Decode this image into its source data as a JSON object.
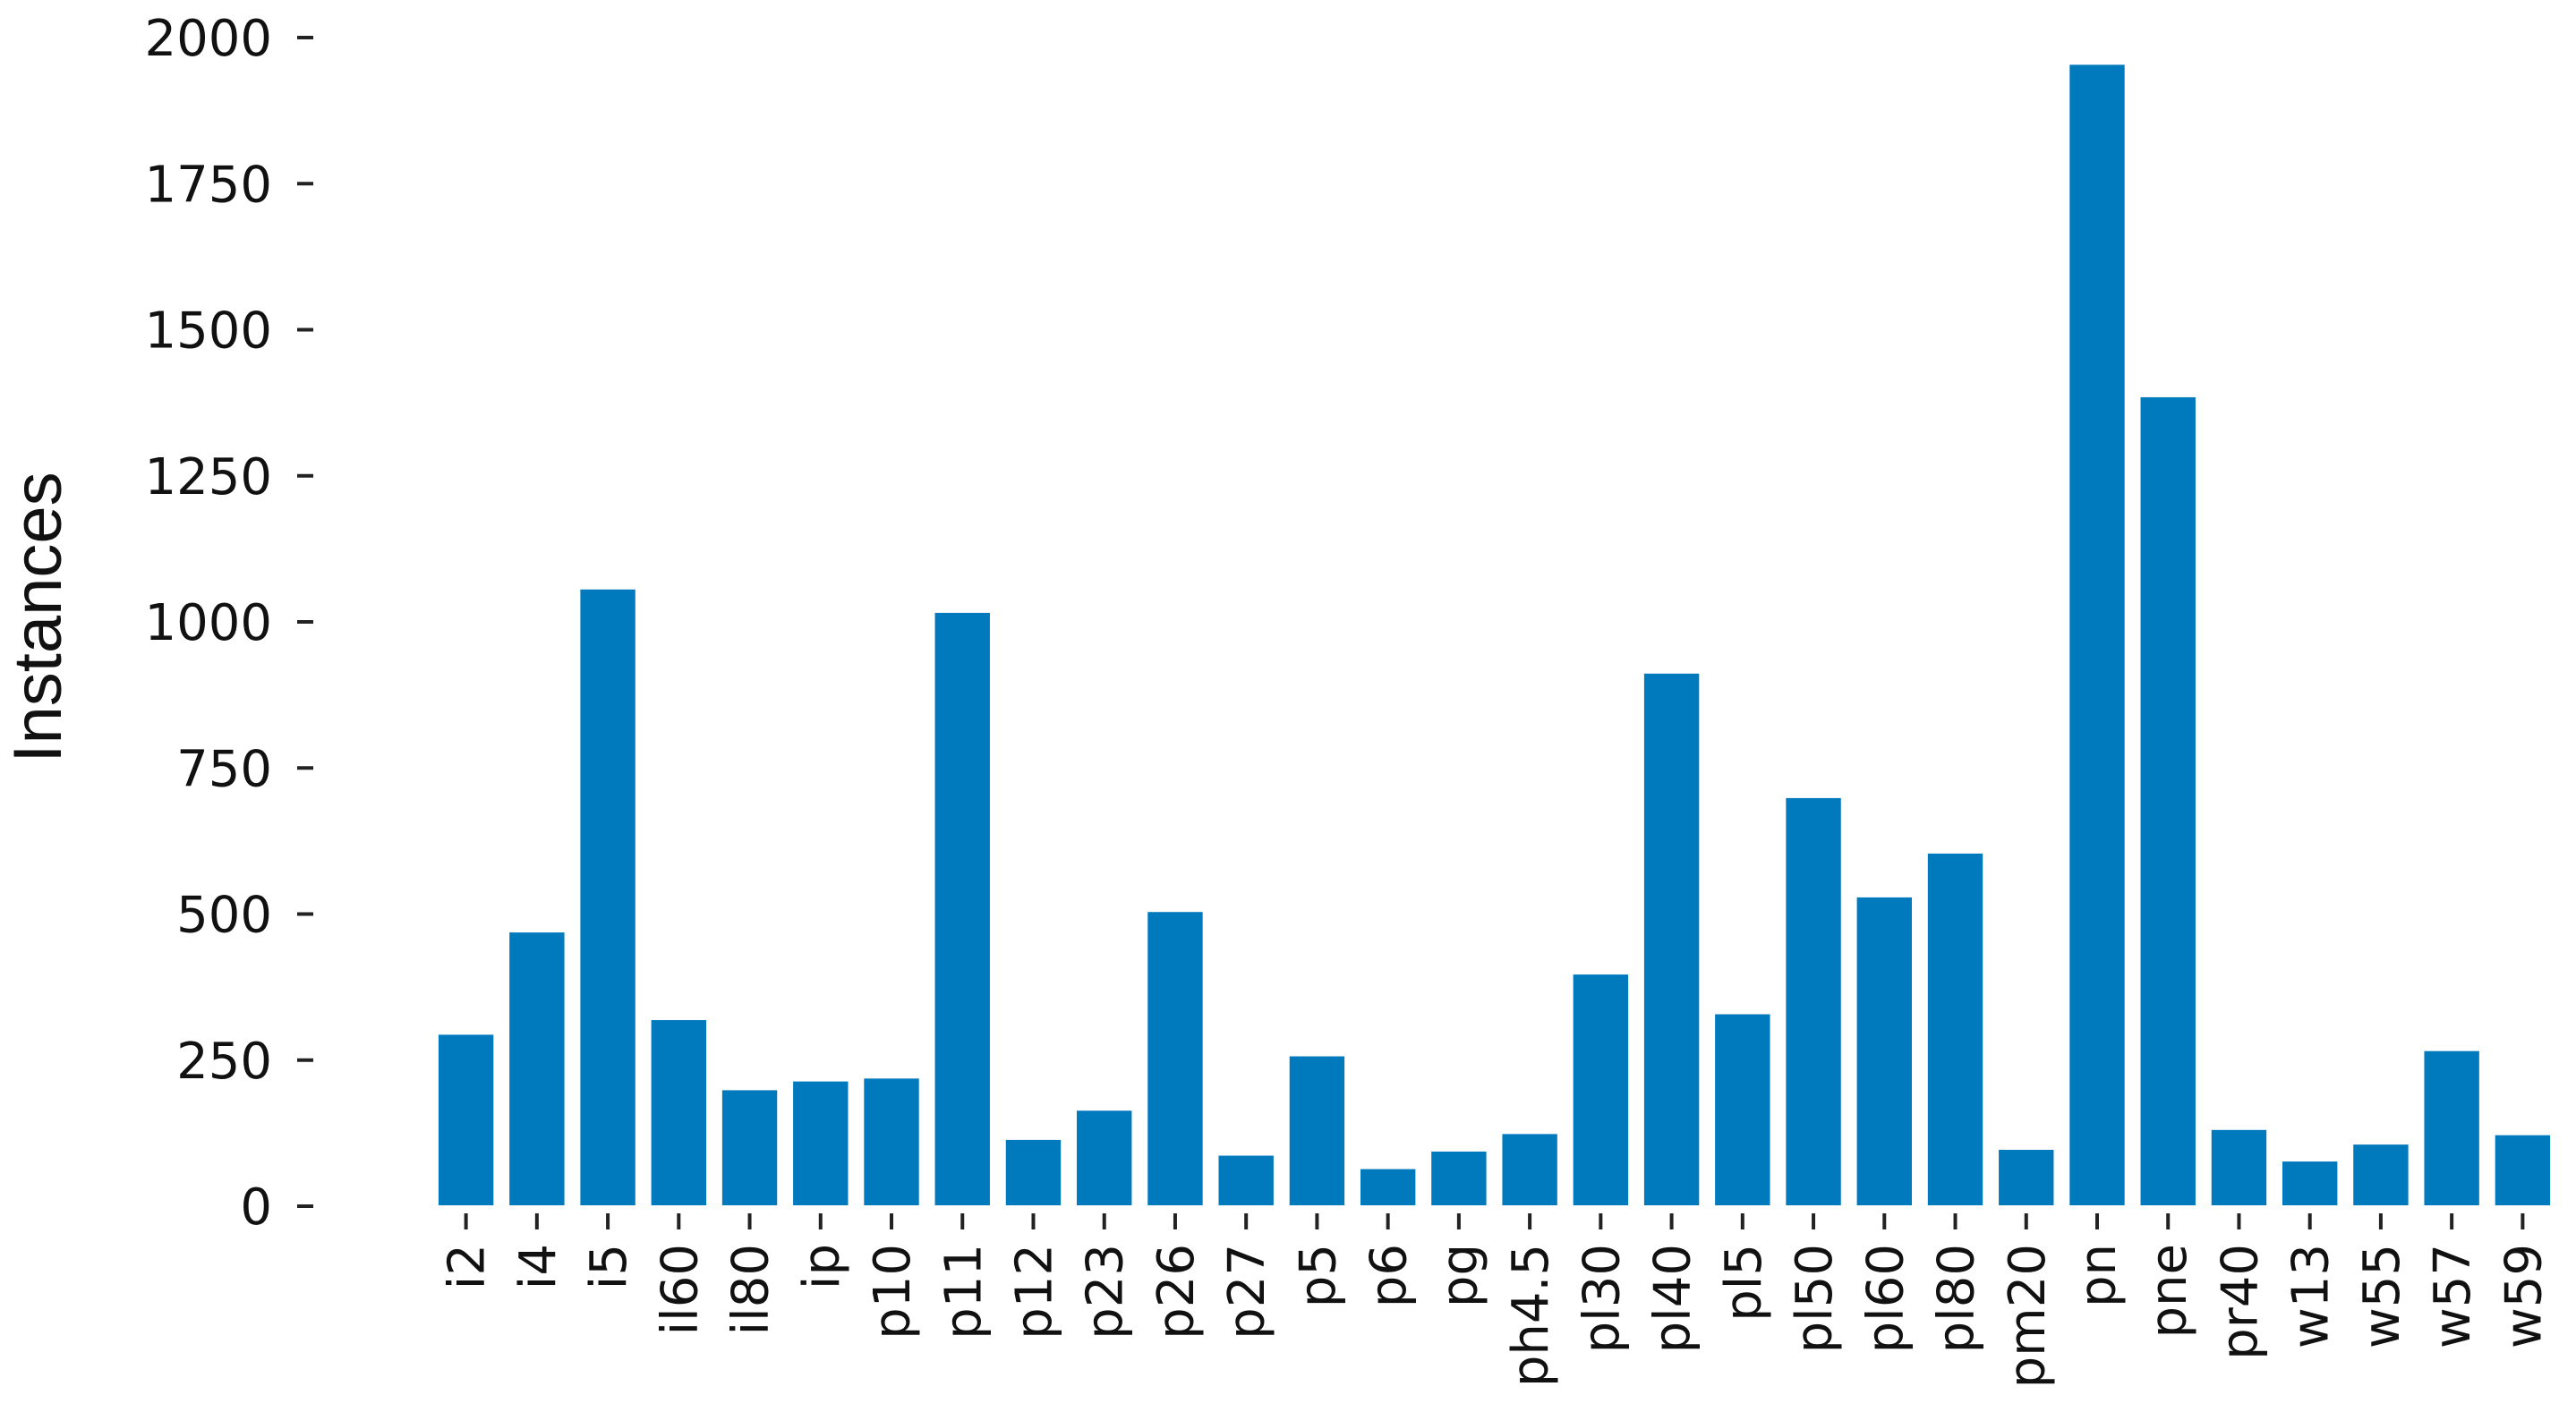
{
  "chart_data": {
    "type": "bar",
    "title": "",
    "xlabel": "",
    "ylabel": "Instances",
    "ylim": [
      0,
      2000
    ],
    "yticks": [
      0,
      250,
      500,
      750,
      1000,
      1250,
      1500,
      1750,
      2000
    ],
    "ytick_labels": [
      "0",
      "250",
      "500",
      "750",
      "1000",
      "1250",
      "1500",
      "1750",
      "2000"
    ],
    "grid": false,
    "legend": "none",
    "bar_color": "#0079bd",
    "categories": [
      "i2",
      "i4",
      "i5",
      "il60",
      "il80",
      "ip",
      "p10",
      "p11",
      "p12",
      "p23",
      "p26",
      "p27",
      "p5",
      "p6",
      "pg",
      "ph4.5",
      "pl30",
      "pl40",
      "pl5",
      "pl50",
      "pl60",
      "pl80",
      "pm20",
      "pn",
      "pne",
      "pr40",
      "w13",
      "w55",
      "w57",
      "w59"
    ],
    "values": [
      295,
      470,
      1057,
      320,
      200,
      215,
      220,
      1017,
      115,
      165,
      505,
      88,
      258,
      65,
      95,
      125,
      398,
      913,
      330,
      700,
      530,
      605,
      98,
      1955,
      1386,
      132,
      78,
      107,
      267,
      123
    ]
  }
}
